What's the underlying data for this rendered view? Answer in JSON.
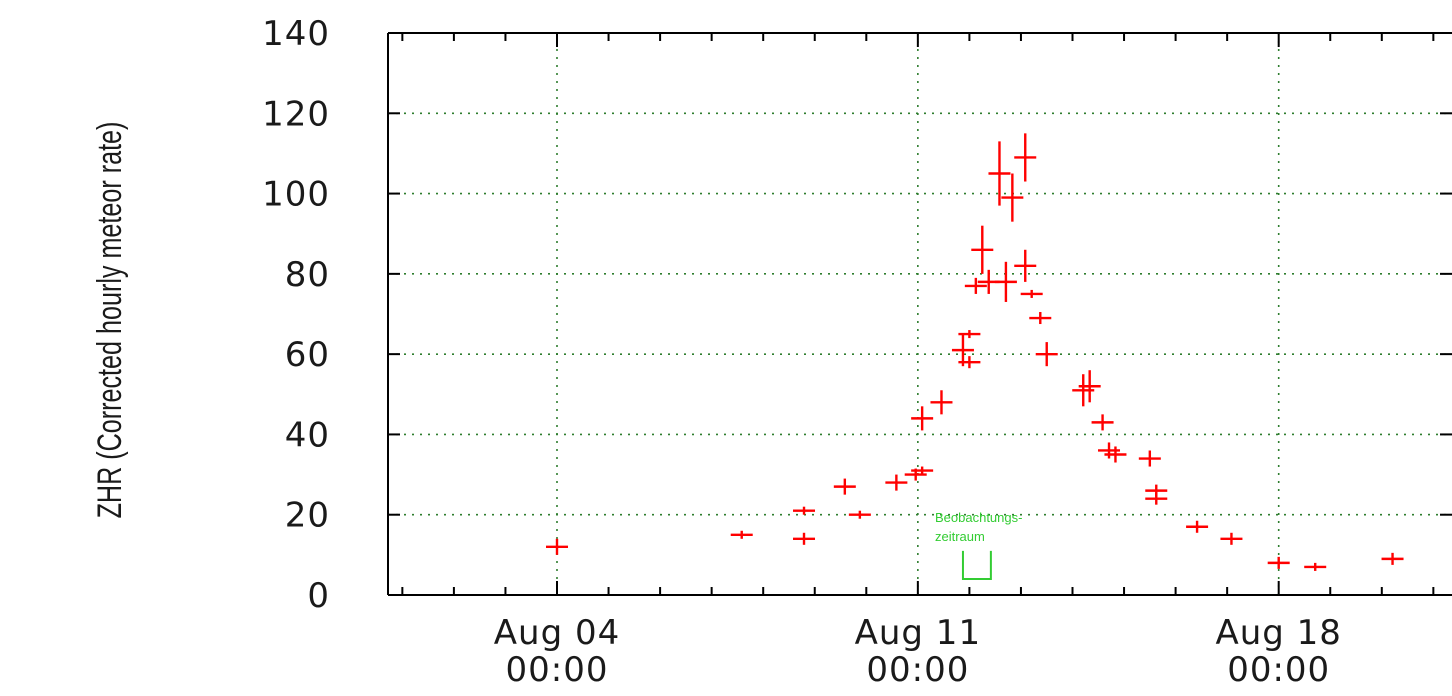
{
  "chart_data": {
    "type": "scatter",
    "ylabel": "ZHR (Corrected hourly meteor rate)",
    "xlabel": "",
    "ylim": [
      0,
      140
    ],
    "yticks": [
      0,
      20,
      40,
      60,
      80,
      100,
      120,
      140
    ],
    "xlim": [
      "2025-08-04T00:00",
      "2025-08-21T00:00"
    ],
    "xticks": [
      {
        "date": "2025-08-04T00:00",
        "line1": "Aug 04",
        "line2": "00:00"
      },
      {
        "date": "2025-08-11T00:00",
        "line1": "Aug 11",
        "line2": "00:00"
      },
      {
        "date": "2025-08-18T00:00",
        "line1": "Aug 18",
        "line2": "00:00"
      }
    ],
    "grid": true,
    "series": [
      {
        "color": "#ff0000",
        "points": [
          {
            "t": "2025-08-04T00:00",
            "y": 12,
            "err": 2
          },
          {
            "t": "2025-08-07T14:00",
            "y": 15,
            "err": 1
          },
          {
            "t": "2025-08-08T19:00",
            "y": 21,
            "err": 1
          },
          {
            "t": "2025-08-08T19:00",
            "y": 14,
            "err": 1.5
          },
          {
            "t": "2025-08-09T14:00",
            "y": 27,
            "err": 2
          },
          {
            "t": "2025-08-09T21:00",
            "y": 20,
            "err": 1
          },
          {
            "t": "2025-08-10T14:00",
            "y": 28,
            "err": 2
          },
          {
            "t": "2025-08-10T23:00",
            "y": 30,
            "err": 1.5
          },
          {
            "t": "2025-08-11T02:00",
            "y": 31,
            "err": 1
          },
          {
            "t": "2025-08-11T02:00",
            "y": 44,
            "err": 3
          },
          {
            "t": "2025-08-11T11:00",
            "y": 48,
            "err": 3
          },
          {
            "t": "2025-08-11T21:00",
            "y": 61,
            "err": 4
          },
          {
            "t": "2025-08-12T00:00",
            "y": 65,
            "err": 1
          },
          {
            "t": "2025-08-12T00:00",
            "y": 58,
            "err": 1.5
          },
          {
            "t": "2025-08-12T03:00",
            "y": 77,
            "err": 2
          },
          {
            "t": "2025-08-12T06:00",
            "y": 86,
            "err": 6
          },
          {
            "t": "2025-08-12T09:00",
            "y": 78,
            "err": 3
          },
          {
            "t": "2025-08-12T14:00",
            "y": 105,
            "err": 8
          },
          {
            "t": "2025-08-12T17:00",
            "y": 78,
            "err": 5
          },
          {
            "t": "2025-08-12T20:00",
            "y": 99,
            "err": 6
          },
          {
            "t": "2025-08-13T02:00",
            "y": 109,
            "err": 6
          },
          {
            "t": "2025-08-13T02:00",
            "y": 82,
            "err": 4
          },
          {
            "t": "2025-08-13T05:00",
            "y": 75,
            "err": 1
          },
          {
            "t": "2025-08-13T09:00",
            "y": 69,
            "err": 1.5
          },
          {
            "t": "2025-08-13T12:00",
            "y": 60,
            "err": 3
          },
          {
            "t": "2025-08-14T05:00",
            "y": 51,
            "err": 4
          },
          {
            "t": "2025-08-14T08:00",
            "y": 52,
            "err": 4
          },
          {
            "t": "2025-08-14T14:00",
            "y": 43,
            "err": 2
          },
          {
            "t": "2025-08-14T17:00",
            "y": 36,
            "err": 2
          },
          {
            "t": "2025-08-14T20:00",
            "y": 35,
            "err": 2
          },
          {
            "t": "2025-08-15T12:00",
            "y": 34,
            "err": 2
          },
          {
            "t": "2025-08-15T15:00",
            "y": 26,
            "err": 1.5
          },
          {
            "t": "2025-08-15T15:00",
            "y": 24,
            "err": 1.5
          },
          {
            "t": "2025-08-16T10:00",
            "y": 17,
            "err": 1.5
          },
          {
            "t": "2025-08-17T02:00",
            "y": 14,
            "err": 1.5
          },
          {
            "t": "2025-08-18T00:00",
            "y": 8,
            "err": 1.5
          },
          {
            "t": "2025-08-18T17:00",
            "y": 7,
            "err": 1
          },
          {
            "t": "2025-08-20T05:00",
            "y": 9,
            "err": 1.5
          }
        ]
      }
    ],
    "annotations": [
      {
        "text_line1": "Beobachtungs-",
        "text_line2": "zeitraum",
        "color": "#33cc33",
        "t_start": "2025-08-11T21:00",
        "t_end": "2025-08-12T10:00",
        "y": 4
      }
    ]
  }
}
